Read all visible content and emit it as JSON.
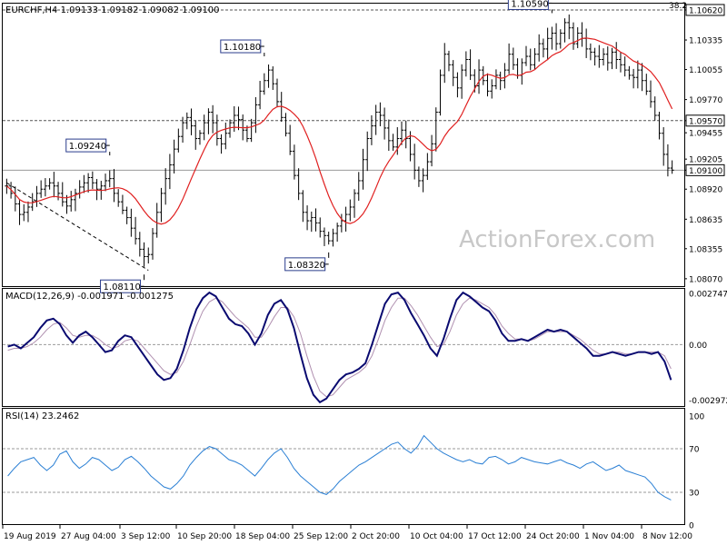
{
  "chart_data": [
    {
      "type": "bar",
      "panel": "price",
      "title": "EURCHF,H4  1.09133 1.09182 1.09082 1.09100",
      "corner_label": "38.2",
      "watermark": "ActionForex.com",
      "y_ticks": [
        "1.10620",
        "1.10335",
        "1.10055",
        "1.09770",
        "1.09570",
        "1.09455",
        "1.09205",
        "1.09100",
        "1.08920",
        "1.08635",
        "1.08355",
        "1.08070"
      ],
      "ylim": [
        1.08,
        1.1068
      ],
      "level_lines": [
        1.1062,
        1.0957,
        1.091
      ],
      "current_price": 1.091,
      "annotations": [
        {
          "text": "1.09240",
          "x_index": 24,
          "value": 1.0924
        },
        {
          "text": "1.08110",
          "x_index": 32,
          "value": 1.0811
        },
        {
          "text": "1.10180",
          "x_index": 60,
          "value": 1.1018
        },
        {
          "text": "1.08320",
          "x_index": 75,
          "value": 1.0832
        },
        {
          "text": "1.10590",
          "x_index": 127,
          "value": 1.1059
        }
      ],
      "close": [
        1.0895,
        1.0888,
        1.0878,
        1.0868,
        1.087,
        1.0875,
        1.088,
        1.0888,
        1.0892,
        1.0895,
        1.0898,
        1.0895,
        1.0888,
        1.088,
        1.0876,
        1.0882,
        1.0888,
        1.0894,
        1.0898,
        1.0903,
        1.0898,
        1.0892,
        1.0895,
        1.09,
        1.0902,
        1.0888,
        1.088,
        1.0872,
        1.0865,
        1.0855,
        1.0845,
        1.0835,
        1.0828,
        1.083,
        1.085,
        1.087,
        1.0888,
        1.0902,
        1.0915,
        1.093,
        1.0942,
        1.0955,
        1.096,
        1.0952,
        1.094,
        1.0945,
        1.0955,
        1.0965,
        1.0955,
        1.094,
        1.0935,
        1.0945,
        1.0955,
        1.0962,
        1.0958,
        1.0948,
        1.094,
        1.0955,
        1.0972,
        1.0985,
        1.0995,
        1.1005,
        1.0992,
        1.0975,
        1.096,
        1.0945,
        1.0928,
        1.0905,
        1.0888,
        1.087,
        1.0862,
        1.0865,
        1.086,
        1.0852,
        1.0848,
        1.0843,
        1.085,
        1.0857,
        1.0862,
        1.0868,
        1.0875,
        1.0888,
        1.09,
        1.092,
        1.094,
        1.0952,
        1.0965,
        1.0962,
        1.095,
        1.0938,
        1.0932,
        1.094,
        1.0948,
        1.094,
        1.0925,
        1.091,
        1.09,
        1.0905,
        1.0918,
        1.0935,
        1.0965,
        1.1,
        1.102,
        1.101,
        1.0998,
        1.0988,
        1.1005,
        1.1015,
        1.1,
        1.099,
        1.1005,
        1.0995,
        1.0985,
        1.099,
        1.1,
        1.0995,
        1.1005,
        1.102,
        1.101,
        1.1,
        1.1012,
        1.1018,
        1.101,
        1.102,
        1.103,
        1.1025,
        1.1035,
        1.104,
        1.103,
        1.104,
        1.105,
        1.1045,
        1.103,
        1.104,
        1.1035,
        1.1025,
        1.1022,
        1.1018,
        1.1015,
        1.102,
        1.1012,
        1.1022,
        1.1015,
        1.101,
        1.1005,
        1.1,
        1.0998,
        1.1005,
        1.0995,
        1.0985,
        1.0975,
        1.0962,
        1.0945,
        1.0925,
        1.0912,
        1.091
      ],
      "moving_average": {
        "color": "#e02020"
      }
    },
    {
      "type": "line",
      "panel": "macd",
      "title": "MACD(12,26,9) -0.001971 -0.001275",
      "y_ticks": [
        "0.002747",
        "0.00",
        "-0.002972"
      ],
      "ylim": [
        -0.0033,
        0.003
      ],
      "series": [
        {
          "name": "MACD",
          "color": "#0a0a70",
          "values": [
            -0.0001,
            0.0,
            -0.0002,
            0.0001,
            0.0004,
            0.0009,
            0.0013,
            0.0014,
            0.0011,
            0.0005,
            0.0001,
            0.0005,
            0.0007,
            0.0004,
            0.0,
            -0.0004,
            -0.0003,
            0.0002,
            0.0005,
            0.0004,
            -0.0001,
            -0.0006,
            -0.0011,
            -0.0016,
            -0.0019,
            -0.0018,
            -0.0013,
            -0.0003,
            0.0009,
            0.0019,
            0.0025,
            0.0028,
            0.0026,
            0.002,
            0.0014,
            0.0011,
            0.001,
            0.0006,
            0.0,
            0.0006,
            0.0016,
            0.0022,
            0.0024,
            0.0019,
            0.0009,
            -0.0005,
            -0.0018,
            -0.0027,
            -0.0031,
            -0.0029,
            -0.0024,
            -0.0019,
            -0.0016,
            -0.0015,
            -0.0013,
            -0.001,
            0.0,
            0.0011,
            0.0022,
            0.0027,
            0.0028,
            0.0024,
            0.0017,
            0.0011,
            0.0005,
            -0.0002,
            -0.0006,
            0.0003,
            0.0014,
            0.0024,
            0.0028,
            0.0026,
            0.0023,
            0.002,
            0.0018,
            0.0013,
            0.0006,
            0.0002,
            0.0002,
            0.0003,
            0.0002,
            0.0004,
            0.0006,
            0.0008,
            0.0007,
            0.0008,
            0.0007,
            0.0004,
            0.0001,
            -0.0002,
            -0.0006,
            -0.0006,
            -0.0005,
            -0.0004,
            -0.0005,
            -0.0006,
            -0.0005,
            -0.0004,
            -0.0004,
            -0.0005,
            -0.0004,
            -0.0009,
            -0.0019
          ]
        },
        {
          "name": "Signal",
          "color": "#b090b0",
          "values": [
            -0.0003,
            -0.0002,
            -0.0002,
            -0.0001,
            0.0001,
            0.0004,
            0.0008,
            0.0011,
            0.0012,
            0.0009,
            0.0005,
            0.0004,
            0.0005,
            0.0005,
            0.0003,
            0.0,
            -0.0002,
            -0.0001,
            0.0002,
            0.0003,
            0.0002,
            -0.0002,
            -0.0006,
            -0.001,
            -0.0014,
            -0.0016,
            -0.0015,
            -0.0009,
            0.0,
            0.001,
            0.0018,
            0.0023,
            0.0025,
            0.0023,
            0.0019,
            0.0015,
            0.0012,
            0.0009,
            0.0004,
            0.0004,
            0.0009,
            0.0015,
            0.002,
            0.002,
            0.0015,
            0.0006,
            -0.0006,
            -0.0017,
            -0.0025,
            -0.0028,
            -0.0027,
            -0.0023,
            -0.0019,
            -0.0017,
            -0.0015,
            -0.0012,
            -0.0006,
            0.0003,
            0.0013,
            0.002,
            0.0025,
            0.0025,
            0.0021,
            0.0016,
            0.001,
            0.0004,
            -0.0001,
            0.0,
            0.0007,
            0.0016,
            0.0022,
            0.0025,
            0.0024,
            0.0022,
            0.002,
            0.0016,
            0.001,
            0.0006,
            0.0003,
            0.0003,
            0.0002,
            0.0003,
            0.0005,
            0.0007,
            0.0007,
            0.0007,
            0.0007,
            0.0005,
            0.0003,
            0.0,
            -0.0003,
            -0.0005,
            -0.0005,
            -0.0004,
            -0.0004,
            -0.0005,
            -0.0005,
            -0.0004,
            -0.0004,
            -0.0004,
            -0.0004,
            -0.0006,
            -0.0013
          ]
        }
      ]
    },
    {
      "type": "line",
      "panel": "rsi",
      "title": "RSI(14) 23.2462",
      "y_ticks": [
        "100",
        "70",
        "30",
        "0"
      ],
      "ylim": [
        0,
        100
      ],
      "level_lines": [
        70,
        30
      ],
      "series": [
        {
          "name": "RSI(14)",
          "color": "#2a7fd4",
          "values": [
            45,
            52,
            58,
            60,
            62,
            55,
            50,
            55,
            65,
            68,
            58,
            52,
            56,
            62,
            60,
            55,
            50,
            53,
            60,
            63,
            58,
            52,
            45,
            40,
            35,
            33,
            38,
            45,
            55,
            62,
            68,
            72,
            70,
            65,
            60,
            58,
            55,
            50,
            45,
            52,
            60,
            66,
            70,
            62,
            52,
            45,
            40,
            35,
            30,
            28,
            33,
            40,
            45,
            50,
            55,
            58,
            62,
            66,
            70,
            74,
            76,
            70,
            66,
            72,
            82,
            76,
            70,
            66,
            63,
            60,
            58,
            60,
            57,
            56,
            62,
            63,
            60,
            56,
            58,
            62,
            60,
            58,
            57,
            56,
            58,
            60,
            57,
            55,
            52,
            56,
            58,
            54,
            50,
            52,
            55,
            50,
            48,
            46,
            44,
            38,
            30,
            26,
            23
          ]
        }
      ]
    }
  ],
  "x_labels": [
    "19 Aug 2019",
    "27 Aug 04:00",
    "3 Sep 12:00",
    "10 Sep 20:00",
    "18 Sep 04:00",
    "25 Sep 12:00",
    "2 Oct 20:00",
    "10 Oct 04:00",
    "17 Oct 12:00",
    "24 Oct 20:00",
    "1 Nov 04:00",
    "8 Nov 12:00"
  ]
}
